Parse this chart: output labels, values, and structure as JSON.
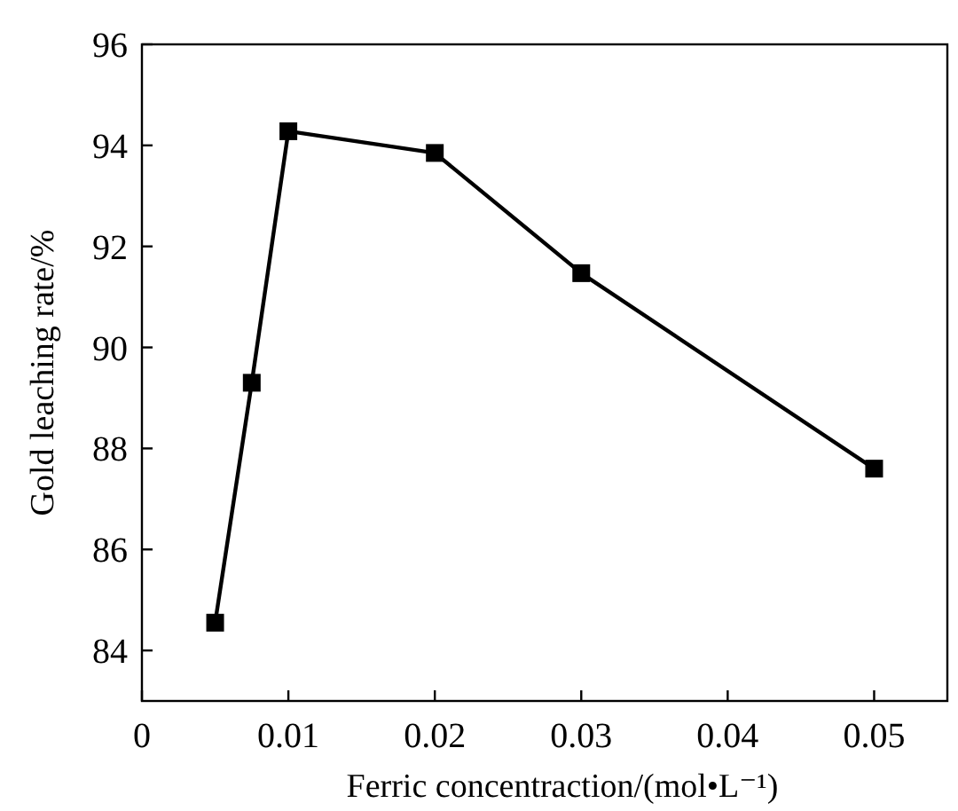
{
  "chart_data": {
    "type": "line",
    "xlabel": "Ferric concentraction/(mol•L⁻¹)",
    "ylabel": "Gold leaching rate/%",
    "x": [
      0.005,
      0.0075,
      0.01,
      0.02,
      0.03,
      0.05
    ],
    "series": [
      {
        "color": "#000000",
        "values": [
          84.55,
          89.3,
          94.28,
          93.85,
          91.47,
          87.6
        ]
      }
    ],
    "xlim": [
      0,
      0.055
    ],
    "xticks": [
      0,
      0.01,
      0.02,
      0.03,
      0.04,
      0.05
    ],
    "ylim": [
      83,
      96
    ],
    "yticks": [
      84,
      86,
      88,
      90,
      92,
      94,
      96
    ],
    "marker": "square",
    "line_style": "solid",
    "grid": false
  }
}
